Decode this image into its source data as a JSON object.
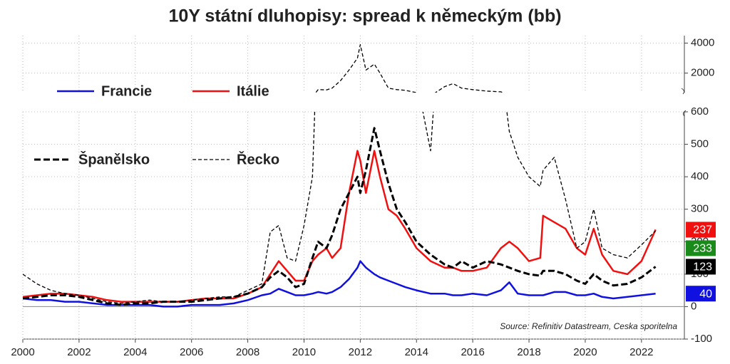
{
  "chart_data": {
    "type": "line",
    "title": "10Y státní dluhopisy: spread k německým (bb)",
    "source": "Source: Refinitiv Datastream, Ceska sporitelna",
    "x": [
      2000,
      2000.5,
      2001,
      2001.5,
      2002,
      2002.5,
      2003,
      2003.5,
      2004,
      2004.5,
      2005,
      2005.5,
      2006,
      2006.5,
      2007,
      2007.5,
      2008,
      2008.5,
      2008.8,
      2009.1,
      2009.4,
      2009.7,
      2010,
      2010.3,
      2010.5,
      2010.8,
      2011,
      2011.3,
      2011.6,
      2011.9,
      2012,
      2012.2,
      2012.5,
      2012.7,
      2013,
      2013.3,
      2013.6,
      2014,
      2014.5,
      2015,
      2015.3,
      2015.6,
      2016,
      2016.5,
      2017,
      2017.3,
      2017.6,
      2018,
      2018.4,
      2018.5,
      2018.9,
      2019.3,
      2019.7,
      2020,
      2020.3,
      2020.6,
      2021,
      2021.5,
      2022,
      2022.5
    ],
    "series": [
      {
        "name": "Francie",
        "color": "#1010e0",
        "line_style": "solid",
        "line_width": 2.5,
        "label_color": "#1010e0",
        "values": [
          25,
          20,
          20,
          15,
          15,
          10,
          5,
          5,
          5,
          5,
          0,
          0,
          5,
          5,
          5,
          10,
          20,
          35,
          40,
          55,
          45,
          35,
          35,
          40,
          45,
          40,
          45,
          60,
          85,
          120,
          140,
          120,
          100,
          90,
          80,
          70,
          60,
          50,
          40,
          40,
          35,
          35,
          40,
          35,
          50,
          75,
          40,
          35,
          35,
          35,
          45,
          45,
          35,
          35,
          40,
          30,
          25,
          30,
          35,
          40
        ],
        "value_labels": [
          null,
          null,
          null,
          null,
          null,
          null,
          null,
          null,
          null,
          null,
          null,
          null,
          null,
          null,
          null,
          null,
          null,
          null,
          null,
          null,
          null,
          null,
          null,
          null,
          null,
          null,
          null,
          null,
          null,
          null,
          null,
          null,
          null,
          null,
          null,
          null,
          null,
          null,
          null,
          null,
          null,
          null,
          null,
          null,
          null,
          null,
          null,
          null,
          null,
          null,
          null,
          null,
          null,
          null,
          null,
          null,
          null,
          null,
          null,
          "40"
        ]
      },
      {
        "name": "Itálie",
        "color": "#f01010",
        "line_style": "solid",
        "line_width": 2.5,
        "label_color": "#f01010",
        "values": [
          30,
          35,
          40,
          40,
          35,
          30,
          20,
          15,
          15,
          15,
          15,
          15,
          20,
          25,
          25,
          25,
          40,
          60,
          100,
          140,
          110,
          80,
          80,
          140,
          160,
          180,
          150,
          180,
          350,
          480,
          450,
          350,
          480,
          400,
          300,
          280,
          240,
          180,
          140,
          120,
          120,
          110,
          110,
          120,
          180,
          200,
          180,
          140,
          150,
          280,
          260,
          240,
          180,
          160,
          240,
          160,
          110,
          100,
          140,
          237
        ],
        "value_labels": [
          null,
          null,
          null,
          null,
          null,
          null,
          null,
          null,
          null,
          null,
          null,
          null,
          null,
          null,
          null,
          null,
          null,
          null,
          null,
          null,
          null,
          null,
          null,
          null,
          null,
          null,
          null,
          null,
          null,
          null,
          null,
          null,
          null,
          null,
          null,
          null,
          null,
          null,
          null,
          null,
          null,
          null,
          null,
          null,
          null,
          null,
          null,
          null,
          null,
          null,
          null,
          null,
          null,
          null,
          null,
          null,
          null,
          null,
          null,
          "237"
        ]
      },
      {
        "name": "Španělsko",
        "color": "#000000",
        "line_style": "dashed",
        "line_width": 3,
        "label_color": "#000000",
        "values": [
          25,
          30,
          35,
          35,
          30,
          20,
          10,
          5,
          10,
          10,
          15,
          15,
          15,
          20,
          25,
          30,
          40,
          60,
          90,
          110,
          90,
          60,
          70,
          150,
          200,
          180,
          220,
          300,
          350,
          400,
          350,
          420,
          550,
          480,
          380,
          300,
          260,
          200,
          160,
          130,
          120,
          140,
          120,
          140,
          130,
          120,
          110,
          100,
          95,
          110,
          110,
          100,
          80,
          70,
          100,
          80,
          65,
          70,
          90,
          123
        ],
        "value_labels": [
          null,
          null,
          null,
          null,
          null,
          null,
          null,
          null,
          null,
          null,
          null,
          null,
          null,
          null,
          null,
          null,
          null,
          null,
          null,
          null,
          null,
          null,
          null,
          null,
          null,
          null,
          null,
          null,
          null,
          null,
          null,
          null,
          null,
          null,
          null,
          null,
          null,
          null,
          null,
          null,
          null,
          null,
          null,
          null,
          null,
          null,
          null,
          null,
          null,
          null,
          null,
          null,
          null,
          null,
          null,
          null,
          null,
          null,
          null,
          "123"
        ]
      },
      {
        "name": "Řecko",
        "color": "#000000",
        "line_style": "dashed",
        "line_width": 1.3,
        "label_color": "#1a8a1a",
        "values": [
          100,
          70,
          50,
          40,
          35,
          25,
          15,
          10,
          15,
          20,
          15,
          15,
          20,
          25,
          30,
          30,
          50,
          70,
          230,
          250,
          150,
          140,
          250,
          400,
          900,
          880,
          1000,
          1500,
          2200,
          3000,
          3900,
          2200,
          2600,
          2000,
          1000,
          900,
          850,
          700,
          480,
          1100,
          1300,
          1000,
          900,
          800,
          750,
          540,
          460,
          400,
          370,
          420,
          460,
          330,
          180,
          200,
          300,
          180,
          160,
          150,
          190,
          233
        ],
        "value_labels": [
          null,
          null,
          null,
          null,
          null,
          null,
          null,
          null,
          null,
          null,
          null,
          null,
          null,
          null,
          null,
          null,
          null,
          null,
          null,
          null,
          null,
          null,
          null,
          null,
          null,
          null,
          null,
          null,
          null,
          null,
          null,
          null,
          null,
          null,
          null,
          null,
          null,
          null,
          null,
          null,
          null,
          null,
          null,
          null,
          null,
          null,
          null,
          null,
          null,
          null,
          null,
          null,
          null,
          null,
          null,
          null,
          null,
          null,
          null,
          "233"
        ]
      }
    ],
    "xlim": [
      2000,
      2023.5
    ],
    "xticks": [
      2000,
      2002,
      2004,
      2006,
      2008,
      2010,
      2012,
      2014,
      2016,
      2018,
      2020,
      2022
    ],
    "ylim": [
      -100,
      600
    ],
    "yticks": [
      -100,
      0,
      100,
      200,
      300,
      400,
      500,
      600
    ],
    "y2lim": [
      700,
      4500
    ],
    "y2ticks": [
      2000,
      4000
    ],
    "grid": true
  }
}
